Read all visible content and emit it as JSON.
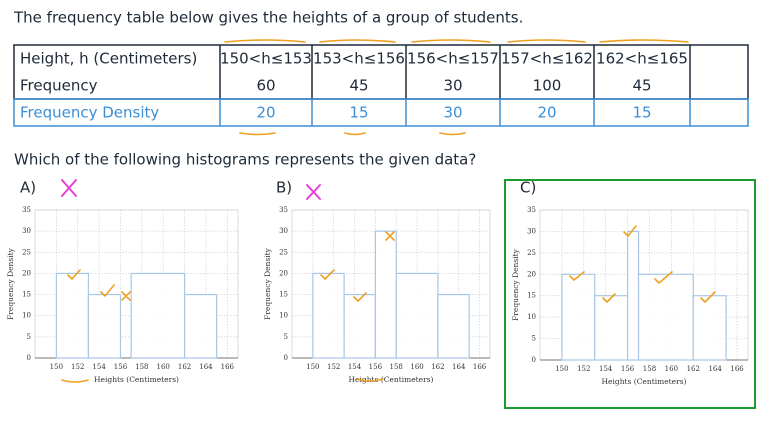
{
  "header": {
    "title": "The frequency table below gives the heights of a group of students."
  },
  "table": {
    "header": [
      "Height, h (Centimeters)",
      "150<h≤153",
      "153<h≤156",
      "156<h≤157",
      "157<h≤162",
      "162<h≤165"
    ],
    "rows": [
      [
        "Frequency",
        60,
        45,
        30,
        100,
        45
      ],
      [
        "Frequency Density",
        20,
        15,
        30,
        20,
        15
      ]
    ]
  },
  "question": "Which of the following histograms represents the given data?",
  "chart_data": [
    {
      "type": "histogram",
      "label": "A)",
      "bins": [
        150,
        153,
        156,
        157,
        162,
        165
      ],
      "values": [
        20,
        15,
        null,
        20,
        15
      ],
      "x_label": "Heights (Centimeters)",
      "y_label": "Frequency Density",
      "color": "#a9c6e8",
      "xlim": [
        148,
        167
      ],
      "ylim": [
        0,
        35
      ],
      "xticks": [
        150,
        152,
        154,
        156,
        158,
        160,
        162,
        164,
        166
      ],
      "yticks": [
        0,
        5,
        10,
        15,
        20,
        25,
        30,
        35
      ],
      "grid": true
    },
    {
      "type": "histogram",
      "label": "B)",
      "bins": [
        150,
        153,
        156,
        158,
        162,
        165
      ],
      "values": [
        20,
        15,
        30,
        20,
        15
      ],
      "x_label": "Heights (Centimeters)",
      "y_label": "Frequency Density",
      "color": "#a9c6e8",
      "xlim": [
        148,
        167
      ],
      "ylim": [
        0,
        35
      ],
      "xticks": [
        150,
        152,
        154,
        156,
        158,
        160,
        162,
        164,
        166
      ],
      "yticks": [
        0,
        5,
        10,
        15,
        20,
        25,
        30,
        35
      ],
      "grid": true
    },
    {
      "type": "histogram",
      "label": "C)",
      "bins": [
        150,
        153,
        156,
        157,
        162,
        165
      ],
      "values": [
        20,
        15,
        30,
        20,
        15
      ],
      "x_label": "Heights (Centimeters)",
      "y_label": "Frequency Density",
      "color": "#a9c6e8",
      "xlim": [
        148,
        167
      ],
      "ylim": [
        0,
        35
      ],
      "xticks": [
        150,
        152,
        154,
        156,
        158,
        160,
        162,
        164,
        166
      ],
      "yticks": [
        0,
        5,
        10,
        15,
        20,
        25,
        30,
        35
      ],
      "grid": true
    }
  ]
}
